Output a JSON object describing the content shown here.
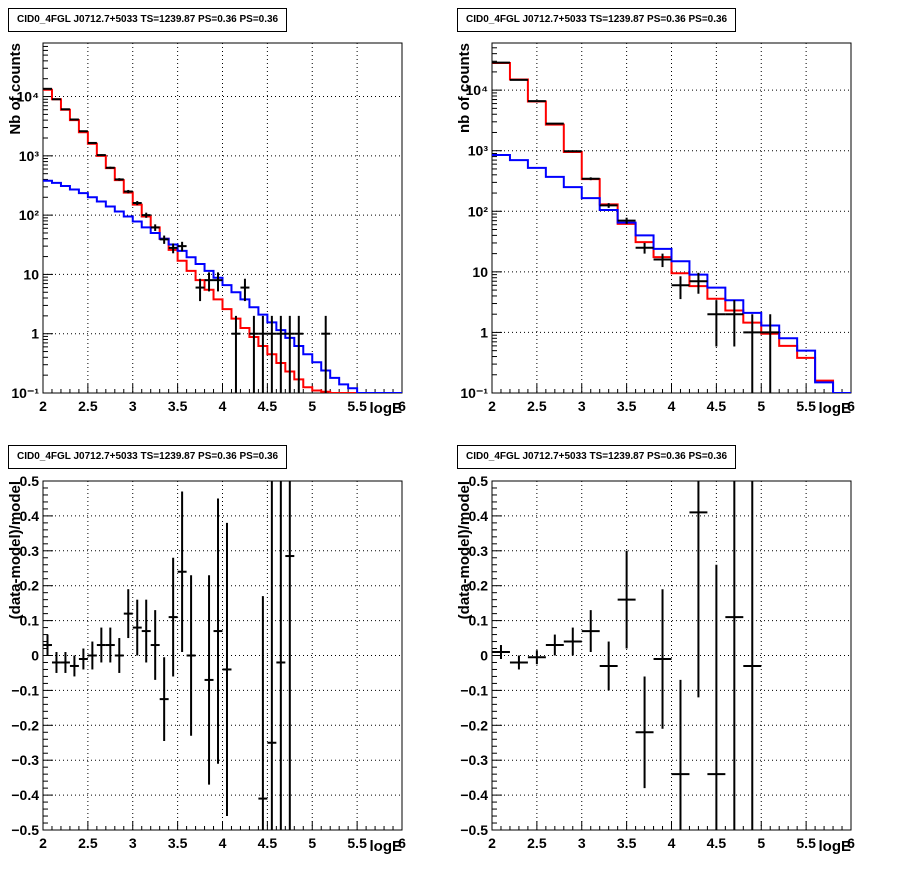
{
  "colors": {
    "data": "#000000",
    "total_model": "#ff0000",
    "component_model": "#0000ff",
    "grid": "#000000",
    "background": "#ffffff"
  },
  "chart_data": [
    {
      "type": "line",
      "panel": "top-left",
      "title": "CID0_4FGL J0712.7+5033 TS=1239.87 PS=0.36 PS=0.36",
      "xlabel": "logE",
      "ylabel": "Nb of counts",
      "xlim": [
        2,
        6
      ],
      "ylim": [
        0.1,
        80000
      ],
      "yscale": "log",
      "grid": true,
      "x_ticks": [
        2,
        2.5,
        3,
        3.5,
        4,
        4.5,
        5,
        5.5,
        6
      ],
      "x_tick_labels": [
        "2",
        "2.5",
        "3",
        "3.5",
        "4",
        "4.5",
        "5",
        "5.5",
        "6"
      ],
      "y_ticks": [
        0.1,
        1,
        10,
        100,
        1000,
        10000
      ],
      "y_tick_labels": [
        "10⁻¹",
        "1",
        "10",
        "10²",
        "10³",
        "10⁴"
      ],
      "bin_edges": [
        2.0,
        2.1,
        2.2,
        2.3,
        2.4,
        2.5,
        2.6,
        2.7,
        2.8,
        2.9,
        3.0,
        3.1,
        3.2,
        3.3,
        3.4,
        3.5,
        3.6,
        3.7,
        3.8,
        3.9,
        4.0,
        4.1,
        4.2,
        4.3,
        4.4,
        4.5,
        4.6,
        4.7,
        4.8,
        4.9,
        5.0,
        5.1,
        5.2,
        5.3,
        5.4,
        5.5,
        5.6,
        5.7,
        5.8,
        5.9,
        6.0
      ],
      "series": [
        {
          "role": "total_model",
          "values": [
            13000,
            9000,
            6000,
            4000,
            2500,
            1600,
            1000,
            620,
            390,
            240,
            150,
            95,
            62,
            40,
            26,
            17,
            11.5,
            8,
            5.5,
            3.8,
            2.6,
            1.8,
            1.25,
            0.88,
            0.62,
            0.45,
            0.32,
            0.23,
            0.17,
            0.125,
            0.11,
            0.105,
            0.1,
            0.1,
            0.1,
            0.1,
            0.1,
            0.1,
            0.1,
            0.1
          ]
        },
        {
          "role": "component_model",
          "values": [
            380,
            350,
            310,
            270,
            235,
            200,
            170,
            140,
            115,
            95,
            78,
            62,
            50,
            40,
            32,
            25,
            19.5,
            15,
            11.5,
            8.8,
            6.6,
            5,
            3.8,
            2.8,
            2.1,
            1.55,
            1.15,
            0.85,
            0.62,
            0.45,
            0.33,
            0.24,
            0.18,
            0.14,
            0.12,
            0.1,
            0.1,
            0.1,
            0.1,
            0.1
          ]
        },
        {
          "role": "data",
          "x": [
            2.05,
            2.15,
            2.25,
            2.35,
            2.45,
            2.55,
            2.65,
            2.75,
            2.85,
            2.95,
            3.05,
            3.15,
            3.25,
            3.35,
            3.45,
            3.55,
            3.75,
            3.85,
            3.95,
            4.15,
            4.25,
            4.35,
            4.45,
            4.55,
            4.65,
            4.75,
            4.85,
            5.15
          ],
          "y": [
            13500,
            9000,
            6100,
            4100,
            2600,
            1650,
            1030,
            630,
            400,
            250,
            160,
            100,
            62,
            39,
            28,
            30,
            6,
            8,
            8,
            1,
            6,
            1,
            1,
            1,
            1,
            1,
            1,
            1
          ]
        }
      ]
    },
    {
      "type": "line",
      "panel": "top-right",
      "title": "CID0_4FGL J0712.7+5033 TS=1239.87 PS=0.36 PS=0.36",
      "xlabel": "logE",
      "ylabel": "nb of counts",
      "xlim": [
        2,
        6
      ],
      "ylim": [
        0.1,
        60000
      ],
      "yscale": "log",
      "grid": true,
      "x_ticks": [
        2,
        2.5,
        3,
        3.5,
        4,
        4.5,
        5,
        5.5,
        6
      ],
      "x_tick_labels": [
        "2",
        "2.5",
        "3",
        "3.5",
        "4",
        "4.5",
        "5",
        "5.5",
        "6"
      ],
      "y_ticks": [
        0.1,
        1,
        10,
        100,
        1000,
        10000
      ],
      "y_tick_labels": [
        "10⁻¹",
        "1",
        "10",
        "10²",
        "10³",
        "10⁴"
      ],
      "bin_edges": [
        2.0,
        2.2,
        2.4,
        2.6,
        2.8,
        3.0,
        3.2,
        3.4,
        3.6,
        3.8,
        4.0,
        4.2,
        4.4,
        4.6,
        4.8,
        5.0,
        5.2,
        5.4,
        5.6,
        5.8,
        6.0
      ],
      "series": [
        {
          "role": "total_model",
          "values": [
            28000,
            15000,
            6500,
            2700,
            950,
            340,
            130,
            62,
            31,
            17.5,
            9.5,
            5.8,
            3.6,
            2.3,
            1.45,
            0.95,
            0.6,
            0.38,
            0.16,
            0.1
          ]
        },
        {
          "role": "component_model",
          "values": [
            850,
            700,
            520,
            370,
            250,
            165,
            105,
            65,
            40,
            24,
            15,
            9,
            5.5,
            3.4,
            2.1,
            1.3,
            0.8,
            0.5,
            0.15,
            0.1
          ]
        },
        {
          "role": "data",
          "x": [
            2.1,
            2.3,
            2.5,
            2.7,
            2.9,
            3.1,
            3.3,
            3.5,
            3.7,
            3.9,
            4.1,
            4.3,
            4.5,
            4.7,
            4.9,
            5.1
          ],
          "y": [
            28500,
            14800,
            6600,
            2800,
            980,
            345,
            125,
            70,
            25,
            16,
            6,
            7,
            2,
            2,
            1,
            1
          ]
        }
      ]
    },
    {
      "type": "line",
      "panel": "bottom-left",
      "title": "CID0_4FGL J0712.7+5033 TS=1239.87 PS=0.36 PS=0.36",
      "xlabel": "logE",
      "ylabel": "(data-model)/model",
      "xlim": [
        2,
        6
      ],
      "ylim": [
        -0.5,
        0.5
      ],
      "grid": true,
      "x_ticks": [
        2,
        2.5,
        3,
        3.5,
        4,
        4.5,
        5,
        5.5,
        6
      ],
      "x_tick_labels": [
        "2",
        "2.5",
        "3",
        "3.5",
        "4",
        "4.5",
        "5",
        "5.5",
        "6"
      ],
      "y_ticks": [
        -0.5,
        -0.4,
        -0.3,
        -0.2,
        -0.1,
        0,
        0.1,
        0.2,
        0.3,
        0.4,
        0.5
      ],
      "y_tick_labels": [
        "−0.5",
        "−0.4",
        "−0.3",
        "−0.2",
        "−0.1",
        "0",
        "0.1",
        "0.2",
        "0.3",
        "0.4",
        "0.5"
      ],
      "series": [
        {
          "role": "data",
          "x": [
            2.05,
            2.15,
            2.25,
            2.35,
            2.45,
            2.55,
            2.65,
            2.75,
            2.85,
            2.95,
            3.05,
            3.15,
            3.25,
            3.35,
            3.45,
            3.55,
            3.65,
            3.85,
            3.95,
            4.05,
            4.45,
            4.55,
            4.65,
            4.75
          ],
          "y": [
            0.03,
            -0.02,
            -0.02,
            -0.03,
            -0.01,
            0.0,
            0.03,
            0.03,
            0.0,
            0.12,
            0.08,
            0.07,
            0.03,
            -0.125,
            0.11,
            0.24,
            0.0,
            -0.07,
            0.07,
            -0.04,
            -0.41,
            -0.25,
            -0.02,
            0.285
          ],
          "yerr": [
            0.03,
            0.03,
            0.03,
            0.03,
            0.03,
            0.04,
            0.05,
            0.05,
            0.05,
            0.07,
            0.08,
            0.09,
            0.1,
            0.12,
            0.17,
            0.23,
            0.23,
            0.3,
            0.38,
            0.42,
            0.58,
            0.9,
            1.0,
            1.0
          ]
        }
      ]
    },
    {
      "type": "line",
      "panel": "bottom-right",
      "title": "CID0_4FGL J0712.7+5033 TS=1239.87 PS=0.36 PS=0.36",
      "xlabel": "logE",
      "ylabel": "(data-model)/model",
      "xlim": [
        2,
        6
      ],
      "ylim": [
        -0.5,
        0.5
      ],
      "grid": true,
      "x_ticks": [
        2,
        2.5,
        3,
        3.5,
        4,
        4.5,
        5,
        5.5,
        6
      ],
      "x_tick_labels": [
        "2",
        "2.5",
        "3",
        "3.5",
        "4",
        "4.5",
        "5",
        "5.5",
        "6"
      ],
      "y_ticks": [
        -0.5,
        -0.4,
        -0.3,
        -0.2,
        -0.1,
        0,
        0.1,
        0.2,
        0.3,
        0.4,
        0.5
      ],
      "y_tick_labels": [
        "−0.5",
        "−0.4",
        "−0.3",
        "−0.2",
        "−0.1",
        "0",
        "0.1",
        "0.2",
        "0.3",
        "0.4",
        "0.5"
      ],
      "series": [
        {
          "role": "data",
          "x": [
            2.1,
            2.3,
            2.5,
            2.7,
            2.9,
            3.1,
            3.3,
            3.5,
            3.7,
            3.9,
            4.1,
            4.3,
            4.5,
            4.7,
            4.9
          ],
          "y": [
            0.01,
            -0.02,
            -0.005,
            0.03,
            0.04,
            0.07,
            -0.03,
            0.16,
            -0.22,
            -0.01,
            -0.34,
            0.41,
            -0.34,
            0.11,
            -0.03
          ],
          "yerr": [
            0.02,
            0.02,
            0.02,
            0.03,
            0.04,
            0.06,
            0.07,
            0.14,
            0.16,
            0.2,
            0.27,
            0.53,
            0.6,
            0.8,
            1.0
          ]
        }
      ]
    }
  ]
}
